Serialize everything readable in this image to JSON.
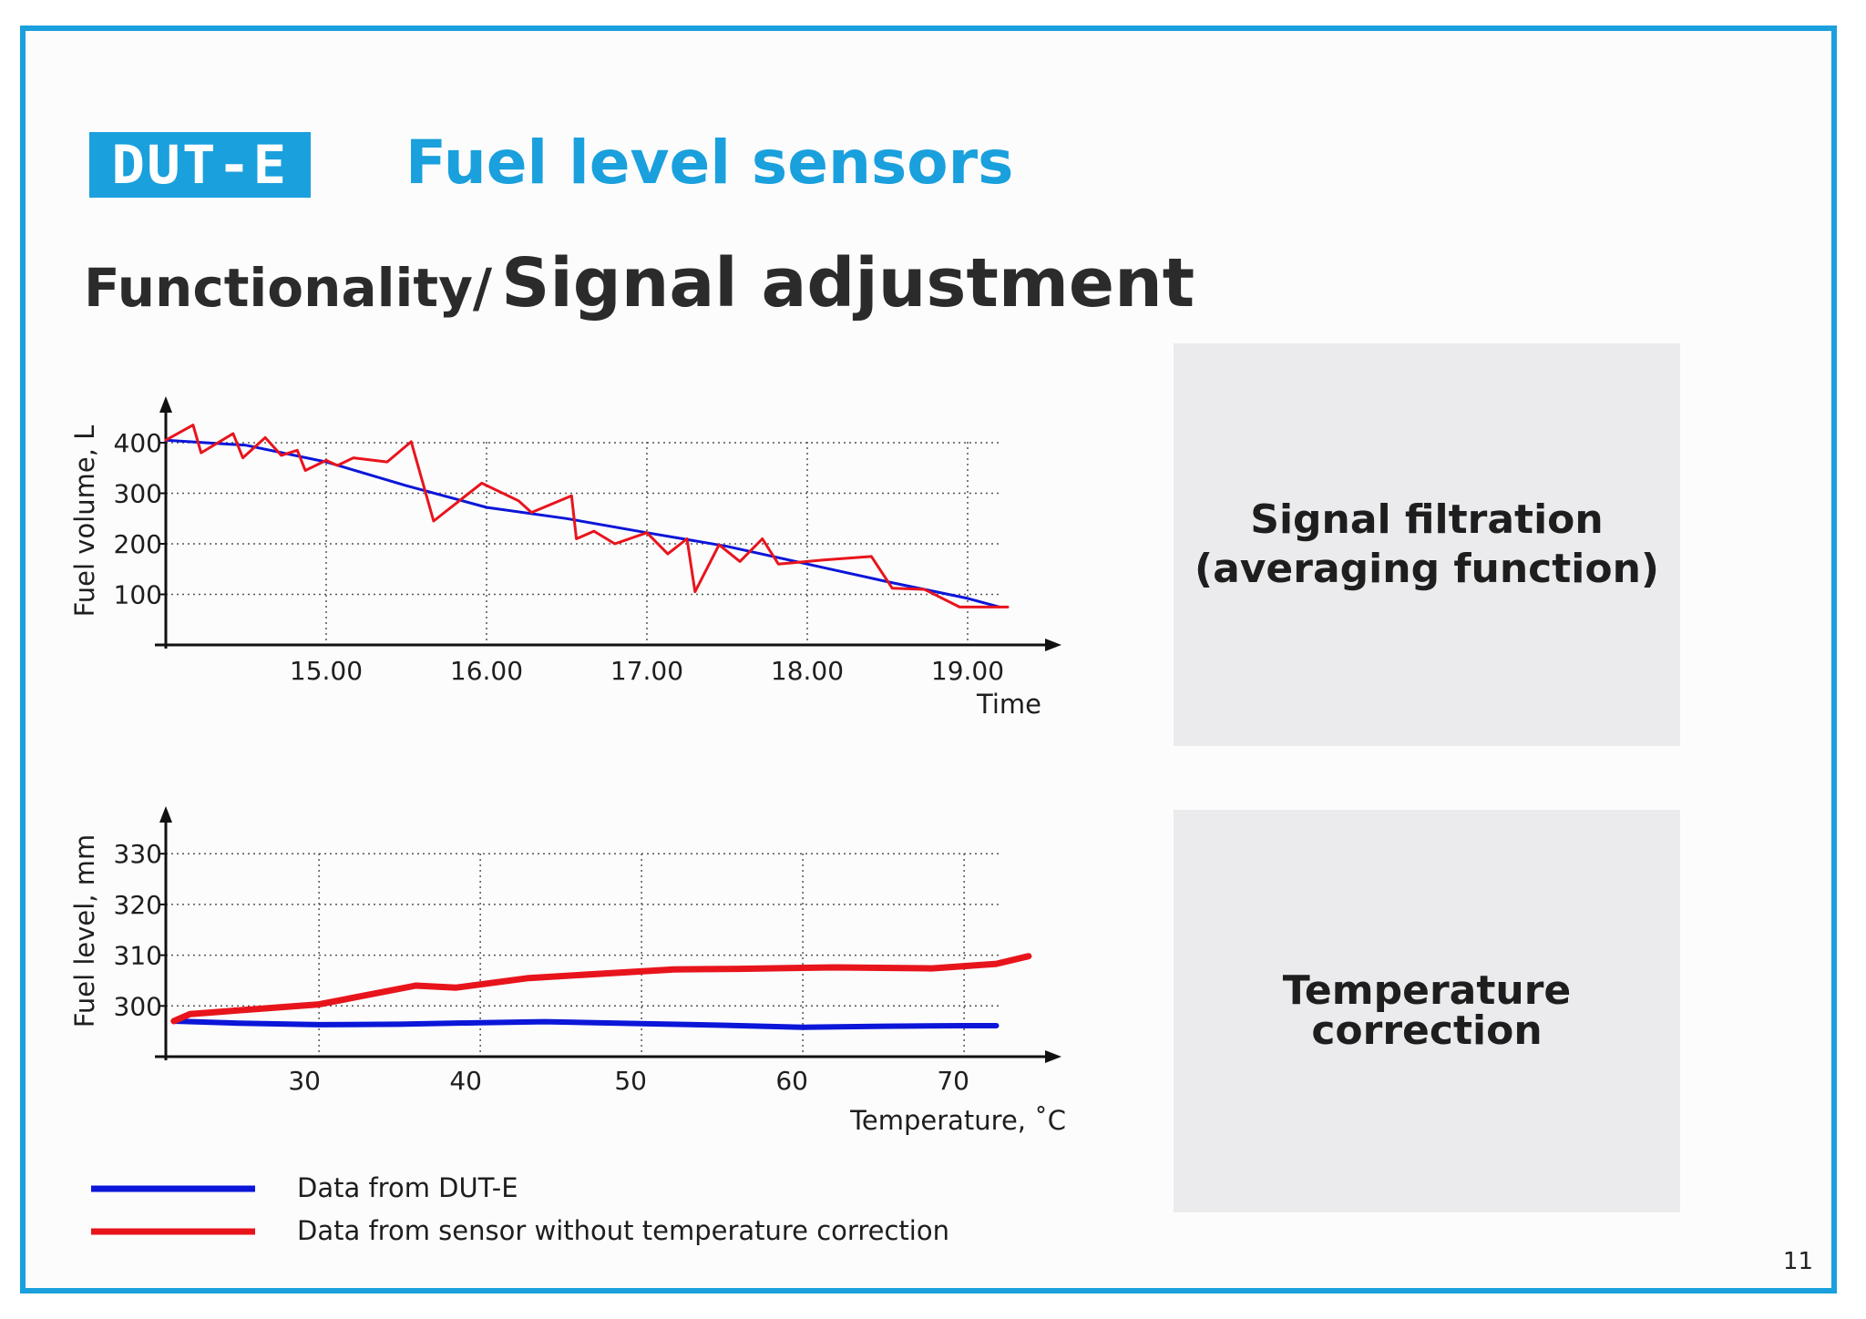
{
  "header": {
    "logo_text": "DUT-E",
    "title": "Fuel level sensors",
    "subtitle_prefix": "Functionality/",
    "subtitle_main": "Signal adjustment"
  },
  "cards": {
    "filtration": "Signal filtration\n(averaging function)",
    "temperature": "Temperature\ncorrection"
  },
  "page_number": "11",
  "legend": [
    {
      "label": "Data from DUT-E",
      "color": "#0b16d8"
    },
    {
      "label": "Data from sensor without temperature correction",
      "color": "#e8141c"
    }
  ],
  "colors": {
    "accent": "#1aa0dc",
    "blue_series": "#0b16d8",
    "red_series": "#e8141c"
  },
  "chart_data": [
    {
      "type": "line",
      "xlabel": "Time",
      "ylabel": "Fuel volume, L",
      "x_ticks": [
        "15.00",
        "16.00",
        "17.00",
        "18.00",
        "19.00"
      ],
      "y_ticks": [
        "400",
        "300",
        "200",
        "100"
      ],
      "xlim": [
        14.0,
        19.5
      ],
      "ylim": [
        0,
        430
      ],
      "grid": true,
      "series": [
        {
          "color": "#0b16d8",
          "x": [
            14.0,
            14.5,
            15.0,
            15.5,
            16.0,
            16.5,
            17.0,
            17.5,
            18.0,
            18.5,
            19.0,
            19.2
          ],
          "y": [
            405,
            395,
            362,
            315,
            272,
            250,
            222,
            195,
            160,
            125,
            92,
            75
          ]
        },
        {
          "color": "#e8141c",
          "x": [
            14.0,
            14.17,
            14.22,
            14.42,
            14.48,
            14.62,
            14.72,
            14.82,
            14.87,
            15.0,
            15.07,
            15.17,
            15.38,
            15.53,
            15.67,
            15.97,
            16.2,
            16.28,
            16.53,
            16.56,
            16.67,
            16.8,
            17.0,
            17.13,
            17.25,
            17.3,
            17.45,
            17.58,
            17.72,
            17.82,
            18.0,
            18.1,
            18.4,
            18.53,
            18.73,
            18.95,
            19.25
          ],
          "y": [
            405,
            435,
            380,
            418,
            370,
            410,
            375,
            385,
            345,
            365,
            355,
            370,
            362,
            402,
            245,
            320,
            285,
            262,
            295,
            210,
            225,
            200,
            222,
            180,
            210,
            105,
            198,
            165,
            210,
            160,
            165,
            168,
            175,
            112,
            110,
            75,
            75
          ]
        }
      ]
    },
    {
      "type": "line",
      "xlabel": "Temperature, ˚C",
      "ylabel": "Fuel level, mm",
      "x_ticks": [
        "30",
        "40",
        "50",
        "60",
        "70"
      ],
      "y_ticks": [
        "330",
        "320",
        "310",
        "300"
      ],
      "xlim": [
        20.5,
        75
      ],
      "ylim": [
        290,
        333
      ],
      "grid": true,
      "series": [
        {
          "color": "#0b16d8",
          "x": [
            21,
            25,
            30,
            35,
            40,
            44,
            50,
            55,
            60,
            65,
            70,
            72
          ],
          "y": [
            297,
            296.6,
            296.3,
            296.4,
            296.7,
            296.9,
            296.5,
            296.2,
            295.8,
            296.0,
            296.1,
            296.1
          ]
        },
        {
          "color": "#e8141c",
          "x": [
            21,
            22,
            30,
            36,
            38.5,
            43,
            52,
            56,
            60,
            62,
            68,
            72,
            74
          ],
          "y": [
            297,
            298.4,
            300.3,
            304.0,
            303.6,
            305.5,
            307.2,
            307.3,
            307.5,
            307.6,
            307.4,
            308.3,
            309.8
          ]
        }
      ]
    }
  ]
}
